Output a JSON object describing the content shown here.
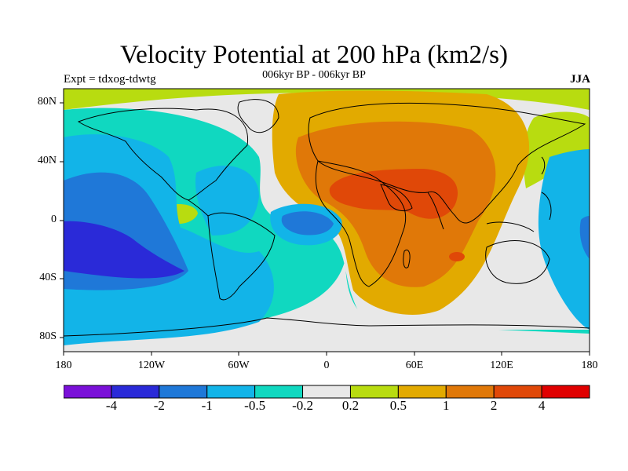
{
  "title": "Velocity Potential at 200 hPa (km2/s)",
  "subtitle": "006kyr BP - 006kyr BP",
  "left_label": "Expt = tdxog-tdwtg",
  "right_label": "JJA",
  "lat_ticks": [
    "80N",
    "40N",
    "0",
    "40S",
    "80S"
  ],
  "lon_ticks": [
    "180",
    "120W",
    "60W",
    "0",
    "60E",
    "120E",
    "180"
  ],
  "colorbar": {
    "labels": [
      "-4",
      "-2",
      "-1",
      "-0.5",
      "-0.2",
      "0.2",
      "0.5",
      "1",
      "2",
      "4"
    ],
    "colors": [
      "#7a10d8",
      "#2a2ad8",
      "#1f78d8",
      "#12b4e8",
      "#10d8c0",
      "#e8e8e8",
      "#b8dc10",
      "#e2aa00",
      "#e07808",
      "#e04808",
      "#e00000"
    ]
  },
  "colors": {
    "background": "#ffffff",
    "coastline": "#000000"
  }
}
